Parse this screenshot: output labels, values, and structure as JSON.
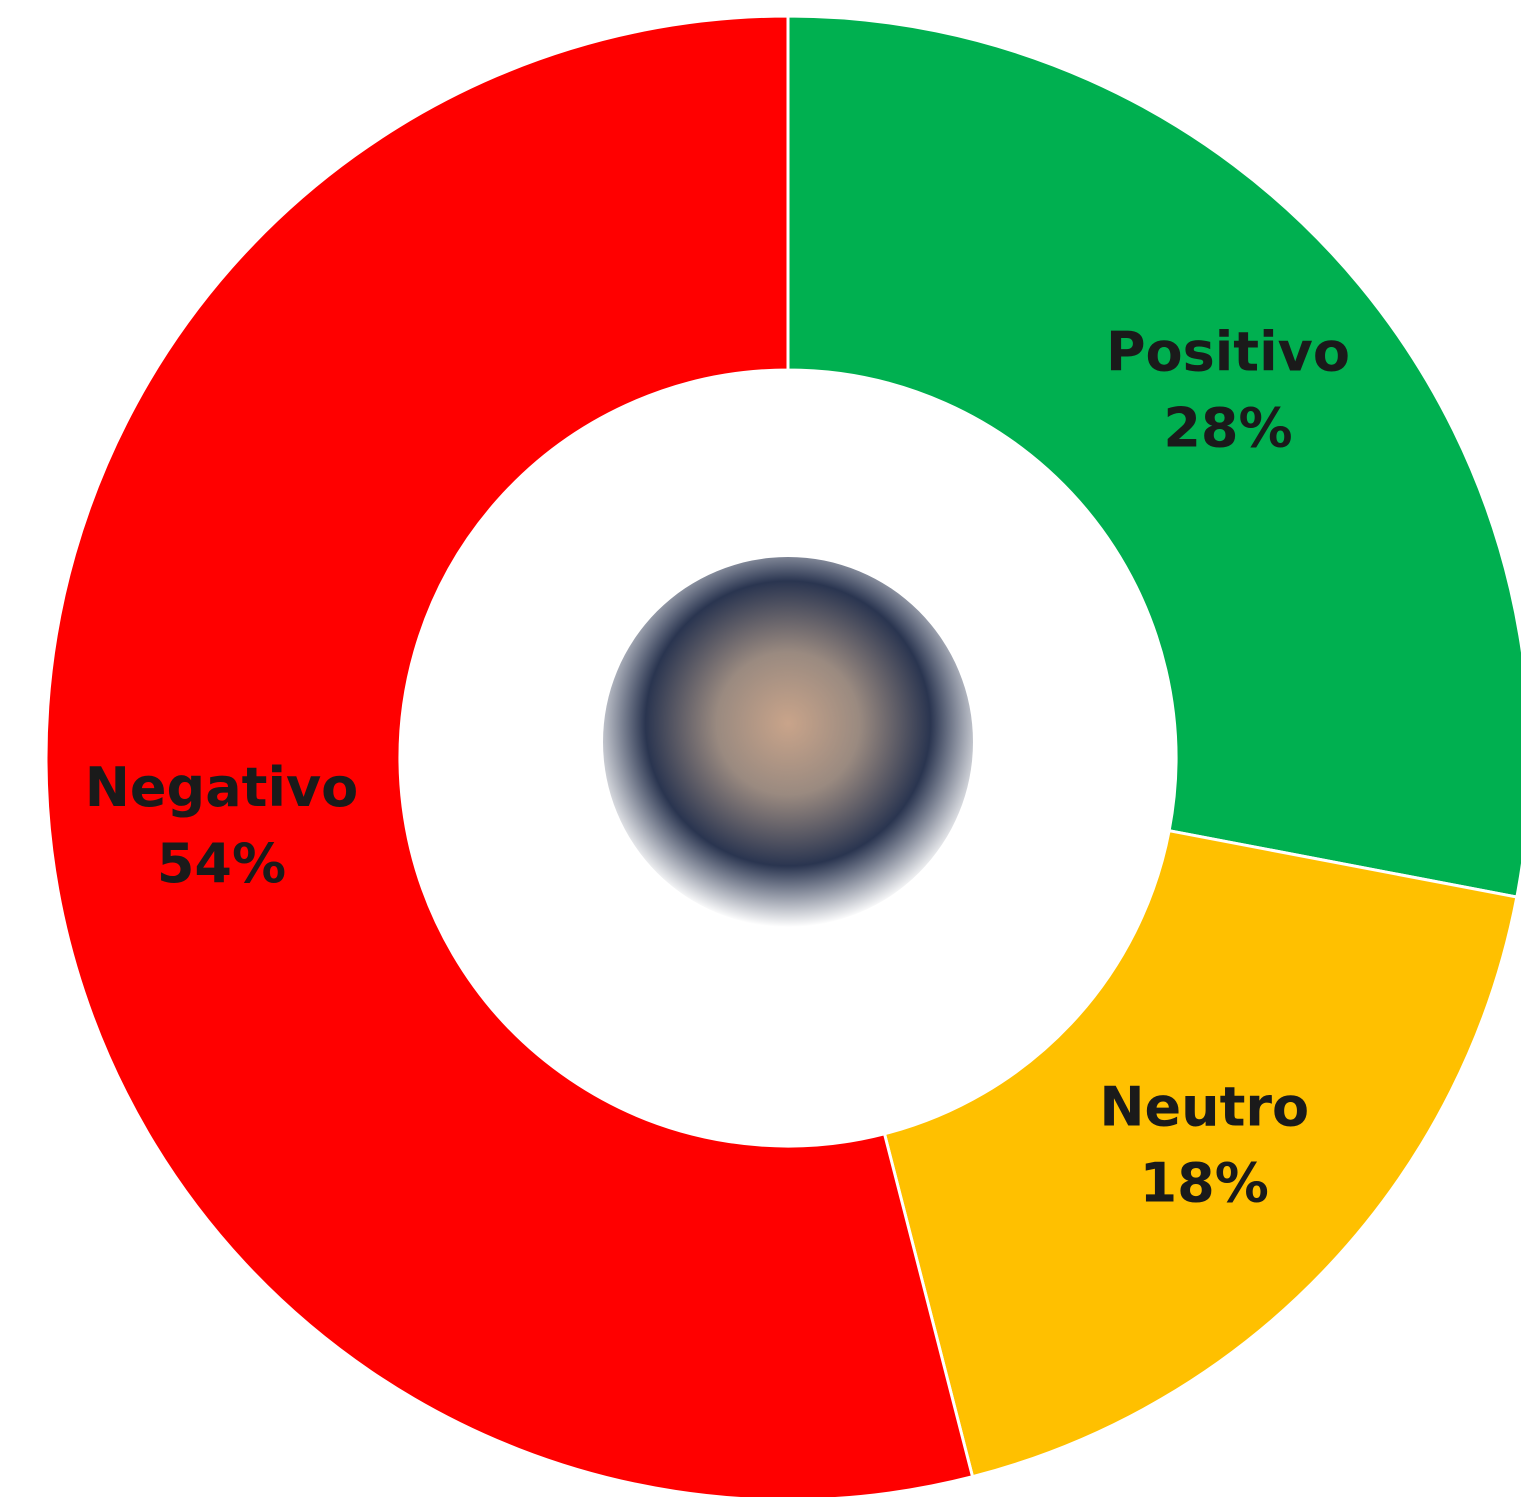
{
  "chart_data": {
    "type": "donut",
    "categories": [
      "Positivo",
      "Neutro",
      "Negativo"
    ],
    "values": [
      28,
      18,
      54
    ],
    "value_labels": [
      "28%",
      "18%",
      "54%"
    ],
    "colors": [
      "#00b050",
      "#ffc000",
      "#ff0000"
    ]
  }
}
